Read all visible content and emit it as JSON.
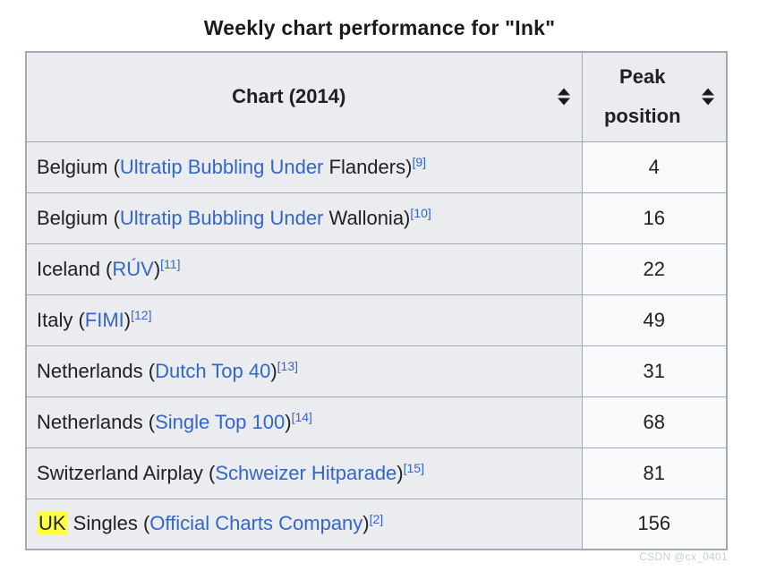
{
  "page": {
    "title": "Weekly chart performance for \"Ink\"",
    "watermark": "CSDN @cx_0401"
  },
  "table": {
    "headers": {
      "chart": "Chart (2014)",
      "peak": "Peak position"
    },
    "rows": [
      {
        "highlight": "",
        "prefix": "Belgium (",
        "link": "Ultratip Bubbling Under",
        "suffix": " Flanders)",
        "ref": "[9]",
        "peak": "4"
      },
      {
        "highlight": "",
        "prefix": "Belgium (",
        "link": "Ultratip Bubbling Under",
        "suffix": " Wallonia)",
        "ref": "[10]",
        "peak": "16"
      },
      {
        "highlight": "",
        "prefix": "Iceland (",
        "link": "RÚV",
        "suffix": ")",
        "ref": "[11]",
        "peak": "22"
      },
      {
        "highlight": "",
        "prefix": "Italy (",
        "link": "FIMI",
        "suffix": ")",
        "ref": "[12]",
        "peak": "49"
      },
      {
        "highlight": "",
        "prefix": "Netherlands (",
        "link": "Dutch Top 40",
        "suffix": ")",
        "ref": "[13]",
        "peak": "31"
      },
      {
        "highlight": "",
        "prefix": "Netherlands (",
        "link": "Single Top 100",
        "suffix": ")",
        "ref": "[14]",
        "peak": "68"
      },
      {
        "highlight": "",
        "prefix": "Switzerland Airplay (",
        "link": "Schweizer Hitparade",
        "suffix": ")",
        "ref": "[15]",
        "peak": "81"
      },
      {
        "highlight": "UK",
        "prefix": " Singles (",
        "link": "Official Charts Company",
        "suffix": ")",
        "ref": "[2]",
        "peak": "156"
      }
    ],
    "colors": {
      "header_bg": "#eaecf0",
      "row_label_bg": "#eaecf0",
      "row_value_bg": "#f8f9fa",
      "border": "#a2a9b1",
      "link": "#3366cc",
      "text": "#202122",
      "highlight": "#ffff43"
    }
  }
}
